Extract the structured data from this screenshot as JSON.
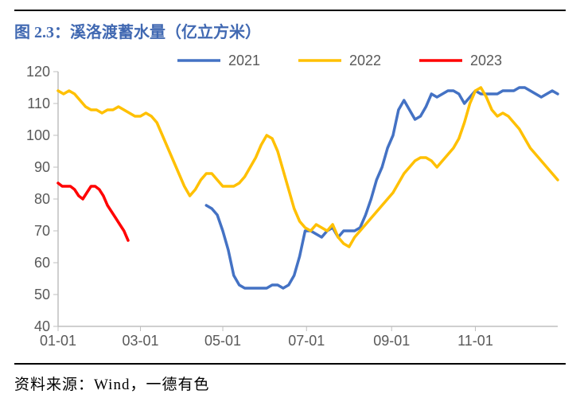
{
  "title": "图 2.3：溪洛渡蓄水量（亿立方米）",
  "source": "资料来源：Wind，一德有色",
  "chart": {
    "type": "line",
    "background_color": "#ffffff",
    "axis_color": "#bfbfbf",
    "tick_text_color": "#595959",
    "title_color": "#4169b2",
    "ylim": [
      40,
      120
    ],
    "ytick_step": 10,
    "yticks": [
      40,
      50,
      60,
      70,
      80,
      90,
      100,
      110,
      120
    ],
    "xticks": [
      "01-01",
      "03-01",
      "05-01",
      "07-01",
      "09-01",
      "11-01"
    ],
    "xtick_positions": [
      0,
      60,
      120,
      181,
      243,
      304
    ],
    "x_range": [
      0,
      364
    ],
    "line_width": 3.5,
    "legend": {
      "position": "top",
      "items": [
        {
          "label": "2021",
          "color": "#4472c4"
        },
        {
          "label": "2022",
          "color": "#ffc000"
        },
        {
          "label": "2023",
          "color": "#ff0000"
        }
      ]
    },
    "series": [
      {
        "name": "2021",
        "color": "#4472c4",
        "x": [
          108,
          112,
          116,
          120,
          124,
          128,
          132,
          136,
          140,
          144,
          148,
          152,
          156,
          160,
          164,
          168,
          172,
          176,
          180,
          184,
          188,
          192,
          196,
          200,
          204,
          208,
          212,
          216,
          220,
          224,
          228,
          232,
          236,
          240,
          244,
          248,
          252,
          256,
          260,
          264,
          268,
          272,
          276,
          280,
          284,
          288,
          292,
          296,
          300,
          304,
          308,
          312,
          316,
          320,
          324,
          328,
          332,
          336,
          340,
          344,
          348,
          352,
          356,
          360,
          364
        ],
        "y": [
          78,
          77,
          75,
          70,
          64,
          56,
          53,
          52,
          52,
          52,
          52,
          52,
          53,
          53,
          52,
          53,
          56,
          62,
          70,
          70,
          69,
          68,
          70,
          71,
          68,
          70,
          70,
          70,
          71,
          75,
          80,
          86,
          90,
          96,
          100,
          108,
          111,
          108,
          105,
          106,
          109,
          113,
          112,
          113,
          114,
          114,
          113,
          110,
          112,
          114,
          113,
          113,
          113,
          113,
          114,
          114,
          114,
          115,
          115,
          114,
          113,
          112,
          113,
          114,
          113
        ]
      },
      {
        "name": "2022",
        "color": "#ffc000",
        "x": [
          0,
          4,
          8,
          12,
          16,
          20,
          24,
          28,
          32,
          36,
          40,
          44,
          48,
          52,
          56,
          60,
          64,
          68,
          72,
          76,
          80,
          84,
          88,
          92,
          96,
          100,
          104,
          108,
          112,
          116,
          120,
          124,
          128,
          132,
          136,
          140,
          144,
          148,
          152,
          156,
          160,
          164,
          168,
          172,
          176,
          180,
          184,
          188,
          192,
          196,
          200,
          204,
          208,
          212,
          216,
          220,
          224,
          228,
          232,
          236,
          240,
          244,
          248,
          252,
          256,
          260,
          264,
          268,
          272,
          276,
          280,
          284,
          288,
          292,
          296,
          300,
          304,
          308,
          312,
          316,
          320,
          324,
          328,
          332,
          336,
          340,
          344,
          348,
          352,
          356,
          360,
          364
        ],
        "y": [
          114,
          113,
          114,
          113,
          111,
          109,
          108,
          108,
          107,
          108,
          108,
          109,
          108,
          107,
          106,
          106,
          107,
          106,
          104,
          100,
          96,
          92,
          88,
          84,
          81,
          83,
          86,
          88,
          88,
          86,
          84,
          84,
          84,
          85,
          87,
          90,
          93,
          97,
          100,
          99,
          95,
          89,
          83,
          77,
          73,
          71,
          70,
          72,
          71,
          70,
          72,
          68,
          66,
          65,
          68,
          70,
          72,
          74,
          76,
          78,
          80,
          82,
          85,
          88,
          90,
          92,
          93,
          93,
          92,
          90,
          92,
          94,
          96,
          99,
          104,
          110,
          114,
          115,
          112,
          108,
          106,
          107,
          106,
          104,
          102,
          99,
          96,
          94,
          92,
          90,
          88,
          86
        ]
      },
      {
        "name": "2023",
        "color": "#ff0000",
        "x": [
          0,
          3,
          6,
          9,
          12,
          15,
          18,
          21,
          24,
          27,
          30,
          33,
          36,
          39,
          42,
          45,
          48,
          51
        ],
        "y": [
          85,
          84,
          84,
          84,
          83,
          81,
          80,
          82,
          84,
          84,
          83,
          81,
          78,
          76,
          74,
          72,
          70,
          67
        ]
      }
    ]
  }
}
